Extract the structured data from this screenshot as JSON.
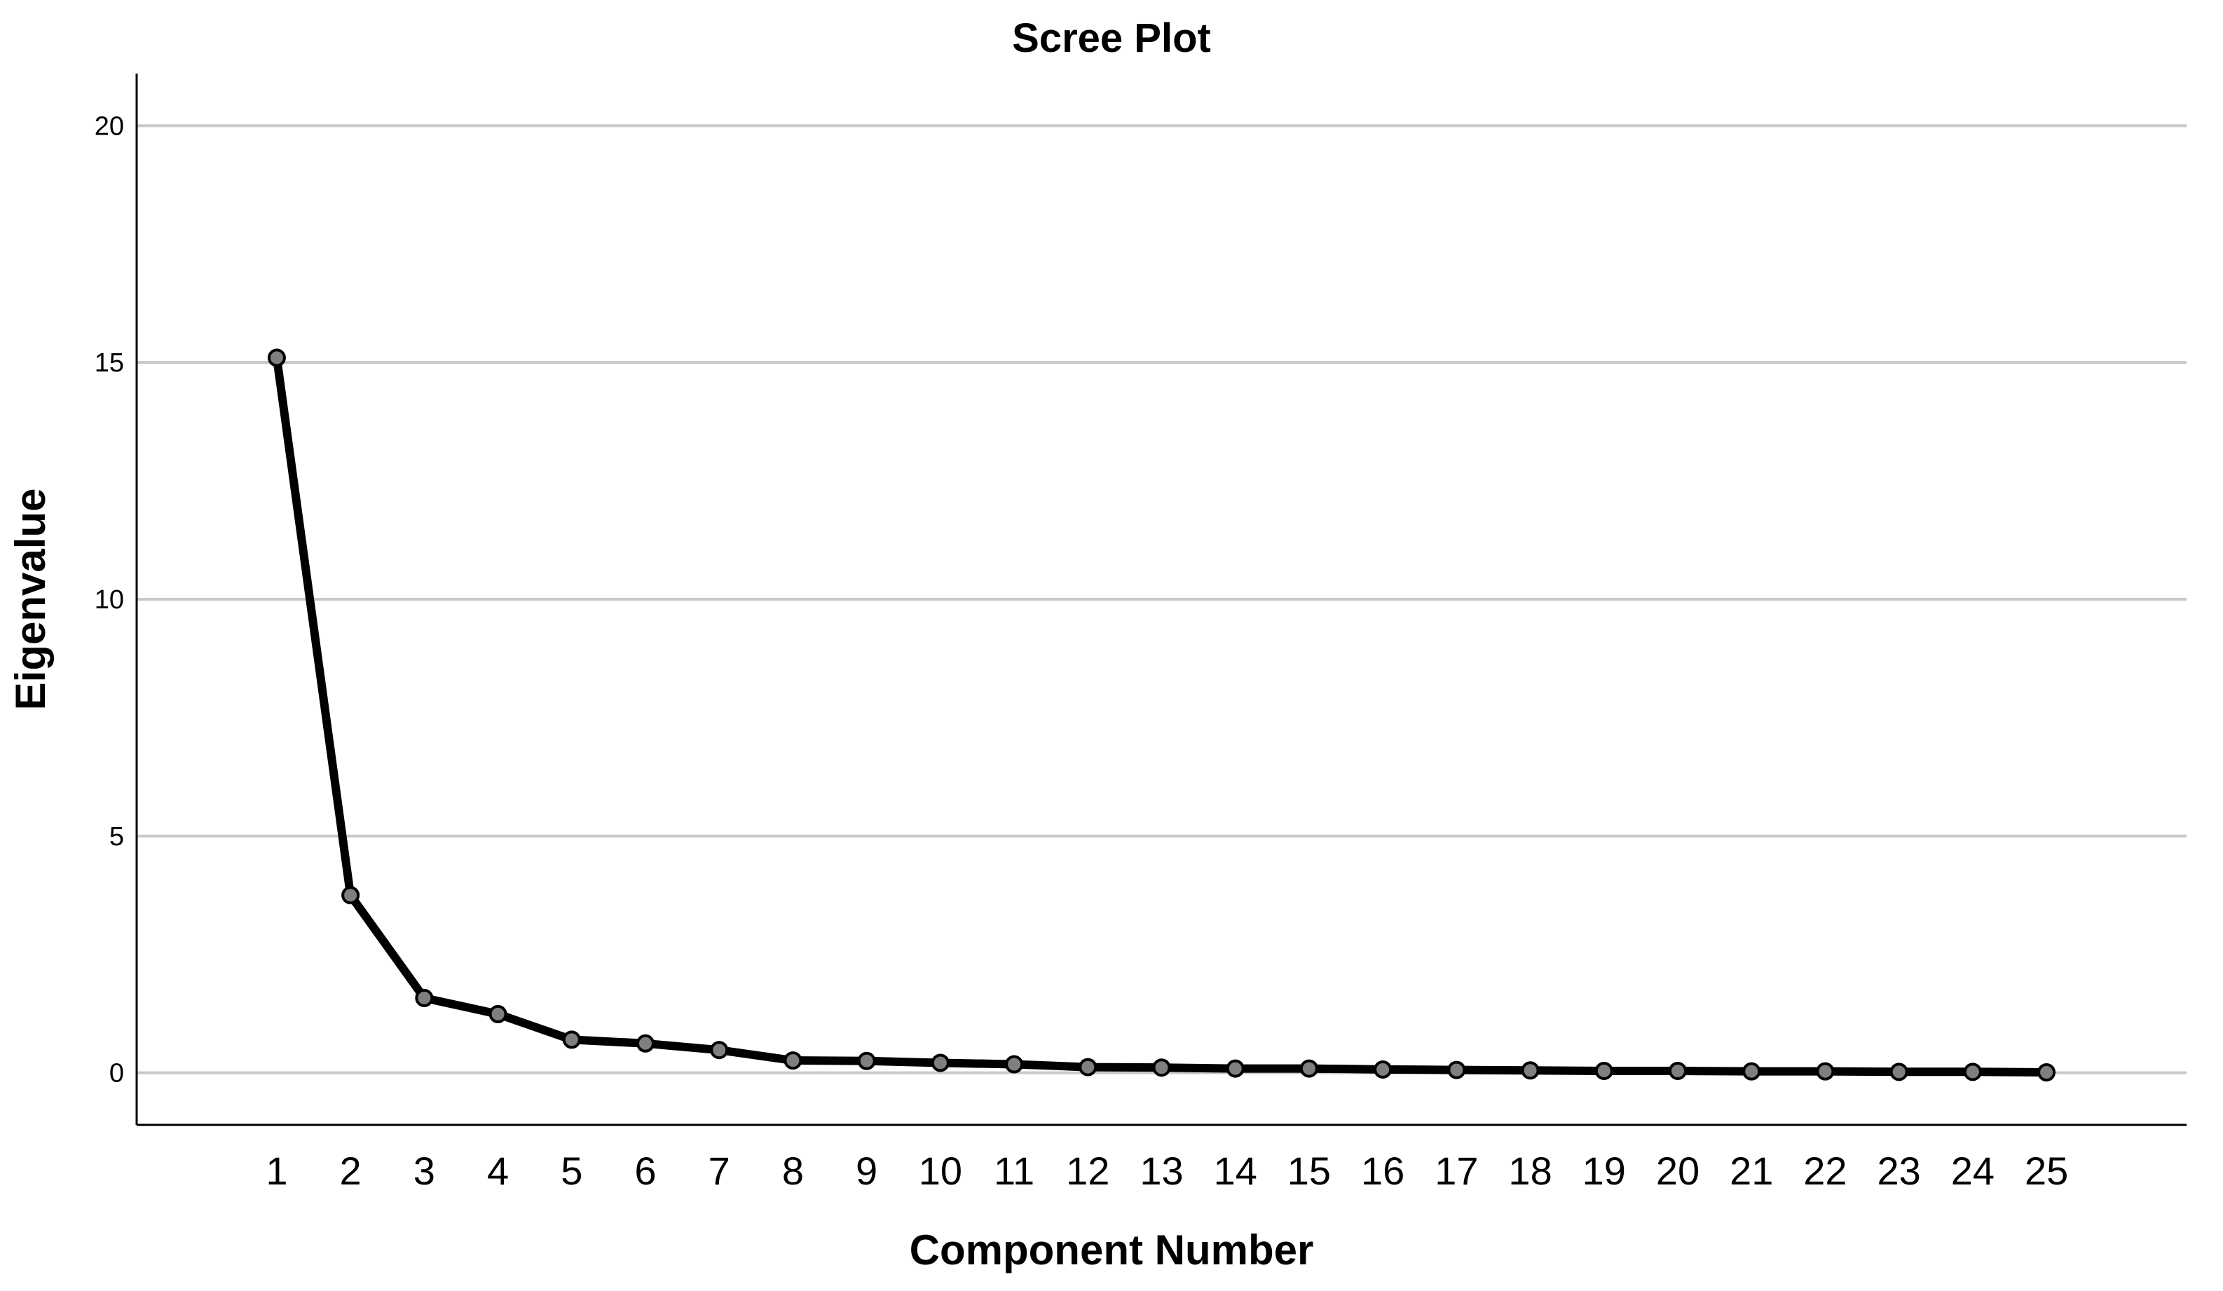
{
  "chart_data": {
    "type": "line",
    "title": "Scree Plot",
    "xlabel": "Component Number",
    "ylabel": "Eigenvalue",
    "x": [
      1,
      2,
      3,
      4,
      5,
      6,
      7,
      8,
      9,
      10,
      11,
      12,
      13,
      14,
      15,
      16,
      17,
      18,
      19,
      20,
      21,
      22,
      23,
      24,
      25
    ],
    "series": [
      {
        "values": [
          15.1,
          3.75,
          1.58,
          1.24,
          0.7,
          0.62,
          0.48,
          0.26,
          0.25,
          0.21,
          0.18,
          0.12,
          0.11,
          0.09,
          0.09,
          0.07,
          0.06,
          0.05,
          0.04,
          0.04,
          0.03,
          0.03,
          0.02,
          0.02,
          0.01
        ]
      }
    ],
    "y_ticks": [
      0,
      5,
      10,
      15,
      20
    ],
    "ylim": [
      -1.1,
      21.1
    ],
    "xlim": [
      -0.9,
      26.9
    ],
    "grid": "horizontal",
    "legend": "none",
    "colors": {
      "line": "#000000",
      "marker_fill": "#7f7f7f",
      "marker_stroke": "#000000",
      "grid": "#c8c8c8"
    }
  }
}
